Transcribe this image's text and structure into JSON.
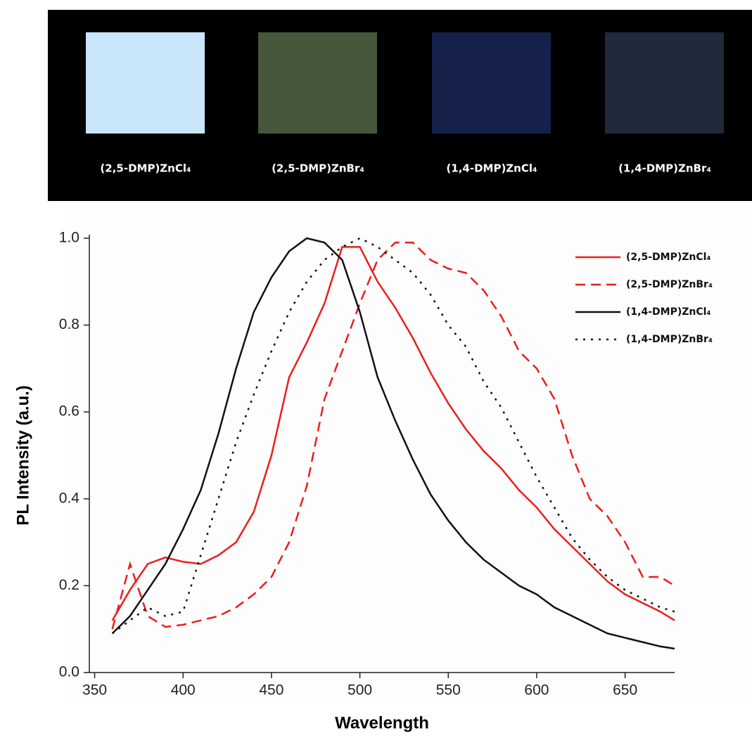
{
  "photo_panel": {
    "samples": [
      {
        "label": "(2,5-DMP)ZnCl₄",
        "color": "#c9e6fb"
      },
      {
        "label": "(2,5-DMP)ZnBr₄",
        "color": "#45563a"
      },
      {
        "label": "(1,4-DMP)ZnCl₄",
        "color": "#15214a"
      },
      {
        "label": "(1,4-DMP)ZnBr₄",
        "color": "#1f2a3a"
      }
    ]
  },
  "chart_data": {
    "type": "line",
    "x_label": "Wavelength",
    "y_label": "PL Intensity (a.u.)",
    "x": [
      360,
      370,
      380,
      390,
      400,
      410,
      420,
      430,
      440,
      450,
      460,
      470,
      480,
      490,
      500,
      510,
      520,
      530,
      540,
      550,
      560,
      570,
      580,
      590,
      600,
      610,
      620,
      630,
      640,
      650,
      660,
      670,
      678
    ],
    "series": [
      {
        "name": "(2,5-DMP)ZnCl₄",
        "color": "#ee1c1c",
        "dash": "solid",
        "values": [
          0.12,
          0.19,
          0.25,
          0.265,
          0.255,
          0.25,
          0.27,
          0.3,
          0.37,
          0.5,
          0.68,
          0.76,
          0.85,
          0.98,
          0.98,
          0.9,
          0.84,
          0.77,
          0.69,
          0.62,
          0.56,
          0.51,
          0.47,
          0.42,
          0.38,
          0.33,
          0.29,
          0.25,
          0.21,
          0.18,
          0.16,
          0.14,
          0.12
        ]
      },
      {
        "name": "(2,5-DMP)ZnBr₄",
        "color": "#ee1c1c",
        "dash": "dashed",
        "values": [
          0.1,
          0.25,
          0.13,
          0.105,
          0.11,
          0.12,
          0.13,
          0.15,
          0.18,
          0.22,
          0.3,
          0.43,
          0.63,
          0.74,
          0.85,
          0.95,
          0.99,
          0.99,
          0.95,
          0.93,
          0.92,
          0.88,
          0.82,
          0.74,
          0.7,
          0.63,
          0.5,
          0.4,
          0.36,
          0.3,
          0.22,
          0.22,
          0.2
        ]
      },
      {
        "name": "(1,4-DMP)ZnCl₄",
        "color": "#111111",
        "dash": "solid",
        "values": [
          0.09,
          0.13,
          0.19,
          0.25,
          0.33,
          0.42,
          0.55,
          0.7,
          0.83,
          0.91,
          0.97,
          1.0,
          0.99,
          0.95,
          0.83,
          0.68,
          0.58,
          0.49,
          0.41,
          0.35,
          0.3,
          0.26,
          0.23,
          0.2,
          0.18,
          0.15,
          0.13,
          0.11,
          0.09,
          0.08,
          0.07,
          0.06,
          0.055
        ]
      },
      {
        "name": "(1,4-DMP)ZnBr₄",
        "color": "#111111",
        "dash": "dotted",
        "values": [
          0.09,
          0.12,
          0.15,
          0.13,
          0.14,
          0.27,
          0.4,
          0.53,
          0.64,
          0.74,
          0.83,
          0.9,
          0.95,
          0.98,
          1.0,
          0.98,
          0.95,
          0.92,
          0.87,
          0.8,
          0.75,
          0.67,
          0.61,
          0.53,
          0.45,
          0.38,
          0.31,
          0.26,
          0.22,
          0.19,
          0.17,
          0.15,
          0.14
        ]
      }
    ],
    "xlim": [
      347,
      678
    ],
    "xticks": [
      350,
      400,
      450,
      500,
      550,
      600,
      650
    ],
    "ylim": [
      0,
      1.0
    ],
    "yticks": [
      {
        "value": 0,
        "label": "0.0"
      },
      0.2,
      0.4,
      0.6,
      0.8,
      {
        "value": 1.0,
        "label": "1.0"
      }
    ],
    "legend": "top-right"
  }
}
